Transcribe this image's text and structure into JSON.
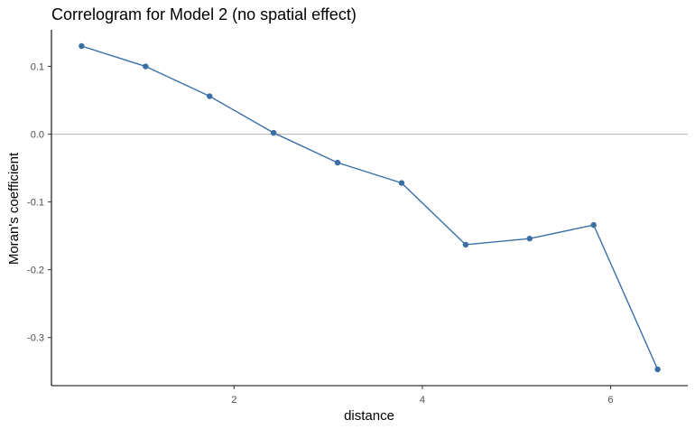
{
  "chart_data": {
    "type": "line",
    "title": "Correlogram for Model 2 (no spatial effect)",
    "xlabel": "distance",
    "ylabel": "Moran's coefficient",
    "series": [
      {
        "x": [
          0.38,
          1.06,
          1.74,
          2.42,
          3.1,
          3.78,
          4.46,
          5.14,
          5.82,
          6.5
        ],
        "y": [
          0.13,
          0.1,
          0.056,
          0.002,
          -0.042,
          -0.072,
          -0.163,
          -0.154,
          -0.134,
          -0.347
        ],
        "color": "#3a6fa6"
      }
    ],
    "xticks": [
      2,
      4,
      6
    ],
    "yticks": [
      0.1,
      0.0,
      -0.1,
      -0.2,
      -0.3
    ],
    "xtick_labels": [
      "2",
      "4",
      "6"
    ],
    "ytick_labels": [
      "0.1",
      "0.0",
      "-0.1",
      "-0.2",
      "-0.3"
    ],
    "xlim": [
      0.06,
      6.82
    ],
    "ylim": [
      -0.371,
      0.154
    ],
    "reference_line_y": 0.0,
    "reference_line_color": "#b3b3b3",
    "grid": false
  }
}
